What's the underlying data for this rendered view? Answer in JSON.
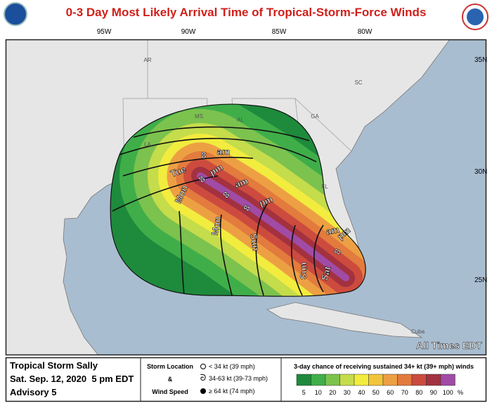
{
  "title": "0-3 Day Most Likely Arrival Time of Tropical-Storm-Force Winds",
  "map": {
    "longitude_labels": [
      "95W",
      "90W",
      "85W",
      "80W"
    ],
    "latitude_labels": [
      "35N",
      "30N",
      "25N"
    ],
    "state_labels": [
      "AR",
      "MS",
      "AL",
      "GA",
      "SC",
      "LA",
      "FL"
    ],
    "country_labels": [
      "Cuba"
    ],
    "time_labels": [
      "Tue",
      "8",
      "am",
      "Mon",
      "8",
      "pm",
      "Mon",
      "8",
      "am",
      "Sun",
      "8",
      "pm",
      "Sun",
      "Sat",
      "8",
      "pm",
      "am"
    ],
    "note": "All Times EDT"
  },
  "info": {
    "storm_name": "Tropical Storm Sally",
    "datetime": "Sat. Sep. 12, 2020  5 pm EDT",
    "advisory": "Advisory 5"
  },
  "storm_legend": {
    "location_label": "Storm Location",
    "ampersand": "&",
    "speed_label": "Wind Speed",
    "entries": [
      "< 34 kt (39 mph)",
      "34-63 kt (39-73 mph)",
      "≥ 64 kt (74 mph)"
    ]
  },
  "probability_legend": {
    "title": "3-day chance of receiving sustained 34+ kt (39+ mph) winds",
    "levels": [
      5,
      10,
      20,
      30,
      40,
      50,
      60,
      70,
      80,
      90,
      100
    ],
    "unit": "%",
    "colors": [
      "#1e8a3c",
      "#3fae49",
      "#7cc24e",
      "#c5dc4b",
      "#f2ec3f",
      "#f2c43c",
      "#eda043",
      "#e27b3d",
      "#cc4b3e",
      "#a3313f",
      "#a04ba5"
    ]
  }
}
